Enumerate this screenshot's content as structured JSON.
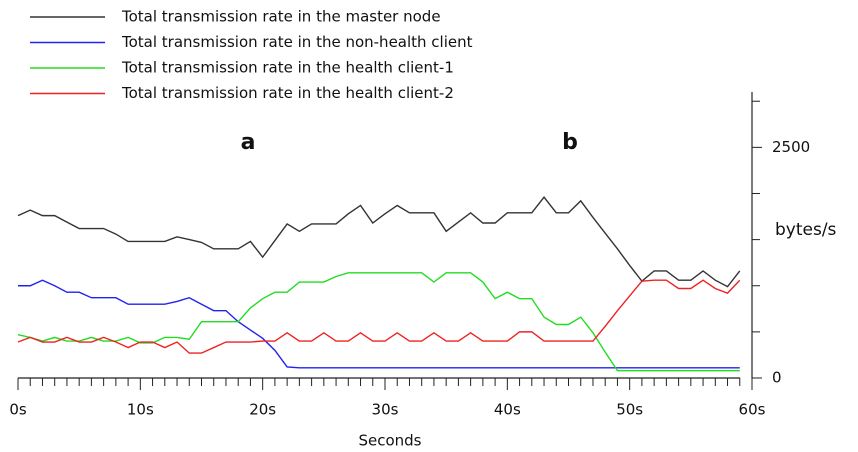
{
  "chart_data": {
    "type": "line",
    "x_label": "Seconds",
    "y_label": "bytes/s",
    "annotations": [
      "a",
      "b"
    ],
    "x": [
      0,
      1,
      2,
      3,
      4,
      5,
      6,
      7,
      8,
      9,
      10,
      11,
      12,
      13,
      14,
      15,
      16,
      17,
      18,
      19,
      20,
      21,
      22,
      23,
      24,
      25,
      26,
      27,
      28,
      29,
      30,
      31,
      32,
      33,
      34,
      35,
      36,
      37,
      38,
      39,
      40,
      41,
      42,
      43,
      44,
      45,
      46,
      47,
      48,
      49,
      50,
      51,
      52,
      53,
      54,
      55,
      56,
      57,
      58,
      59
    ],
    "series": [
      {
        "name": "Total transmission rate in the master node",
        "color": "#333333",
        "values": [
          1760,
          1820,
          1760,
          1760,
          1690,
          1620,
          1620,
          1620,
          1560,
          1480,
          1480,
          1480,
          1480,
          1530,
          1500,
          1470,
          1400,
          1400,
          1400,
          1480,
          1310,
          1490,
          1670,
          1590,
          1670,
          1670,
          1670,
          1780,
          1870,
          1680,
          1780,
          1870,
          1790,
          1790,
          1790,
          1590,
          1690,
          1790,
          1680,
          1680,
          1790,
          1790,
          1790,
          1960,
          1790,
          1790,
          1920,
          1740,
          1570,
          1400,
          1220,
          1050,
          1160,
          1160,
          1060,
          1060,
          1160,
          1060,
          990,
          1160
        ]
      },
      {
        "name": "Total transmission rate in the non-health client",
        "color": "#2222ee",
        "values": [
          1000,
          1000,
          1060,
          1000,
          930,
          930,
          870,
          870,
          870,
          800,
          800,
          800,
          800,
          830,
          870,
          800,
          730,
          730,
          610,
          520,
          430,
          300,
          120,
          110,
          110,
          110,
          110,
          110,
          110,
          110,
          110,
          110,
          110,
          110,
          110,
          110,
          110,
          110,
          110,
          110,
          110,
          110,
          110,
          110,
          110,
          110,
          110,
          110,
          110,
          110,
          110,
          110,
          110,
          110,
          110,
          110,
          110,
          110,
          110,
          110
        ]
      },
      {
        "name": "Total transmission rate in the health client-1",
        "color": "#22dd22",
        "values": [
          470,
          440,
          400,
          440,
          400,
          400,
          440,
          400,
          400,
          440,
          380,
          380,
          440,
          440,
          420,
          610,
          610,
          610,
          610,
          760,
          860,
          930,
          930,
          1040,
          1040,
          1040,
          1100,
          1140,
          1140,
          1140,
          1140,
          1140,
          1140,
          1140,
          1040,
          1140,
          1140,
          1140,
          1040,
          860,
          930,
          860,
          860,
          660,
          580,
          580,
          660,
          490,
          280,
          80,
          80,
          80,
          80,
          80,
          80,
          80,
          80,
          80,
          80,
          80
        ]
      },
      {
        "name": "Total transmission rate in the health client-2",
        "color": "#ee2222",
        "values": [
          390,
          440,
          390,
          390,
          440,
          390,
          390,
          440,
          390,
          330,
          390,
          390,
          330,
          390,
          270,
          270,
          330,
          390,
          390,
          390,
          400,
          400,
          490,
          400,
          400,
          490,
          400,
          400,
          490,
          400,
          400,
          490,
          400,
          400,
          490,
          400,
          400,
          490,
          400,
          400,
          400,
          500,
          500,
          400,
          400,
          400,
          400,
          400,
          560,
          730,
          890,
          1050,
          1060,
          1060,
          970,
          970,
          1060,
          970,
          920,
          1060
        ]
      }
    ],
    "xlim": [
      0,
      60
    ],
    "xticks": [
      {
        "value": 0,
        "label": "0s"
      },
      {
        "value": 10,
        "label": "10s"
      },
      {
        "value": 20,
        "label": "20s"
      },
      {
        "value": 30,
        "label": "30s"
      },
      {
        "value": 40,
        "label": "40s"
      },
      {
        "value": 50,
        "label": "50s"
      },
      {
        "value": 60,
        "label": "60s"
      }
    ],
    "xticks_minor": [
      1,
      2,
      3,
      4,
      5,
      6,
      7,
      8,
      9,
      11,
      12,
      13,
      14,
      15,
      16,
      17,
      18,
      19,
      21,
      22,
      23,
      24,
      25,
      26,
      27,
      28,
      29,
      31,
      32,
      33,
      34,
      35,
      36,
      37,
      38,
      39,
      41,
      42,
      43,
      44,
      45,
      46,
      47,
      48,
      49,
      51,
      52,
      53,
      54,
      55,
      56,
      57,
      58,
      59
    ],
    "ylim": [
      0,
      3100
    ],
    "yticks": [
      0,
      2500
    ],
    "yticks_minor": [
      500,
      1000,
      1500,
      2000,
      3000
    ],
    "y_axis_side": "right",
    "legend": "top-left"
  }
}
